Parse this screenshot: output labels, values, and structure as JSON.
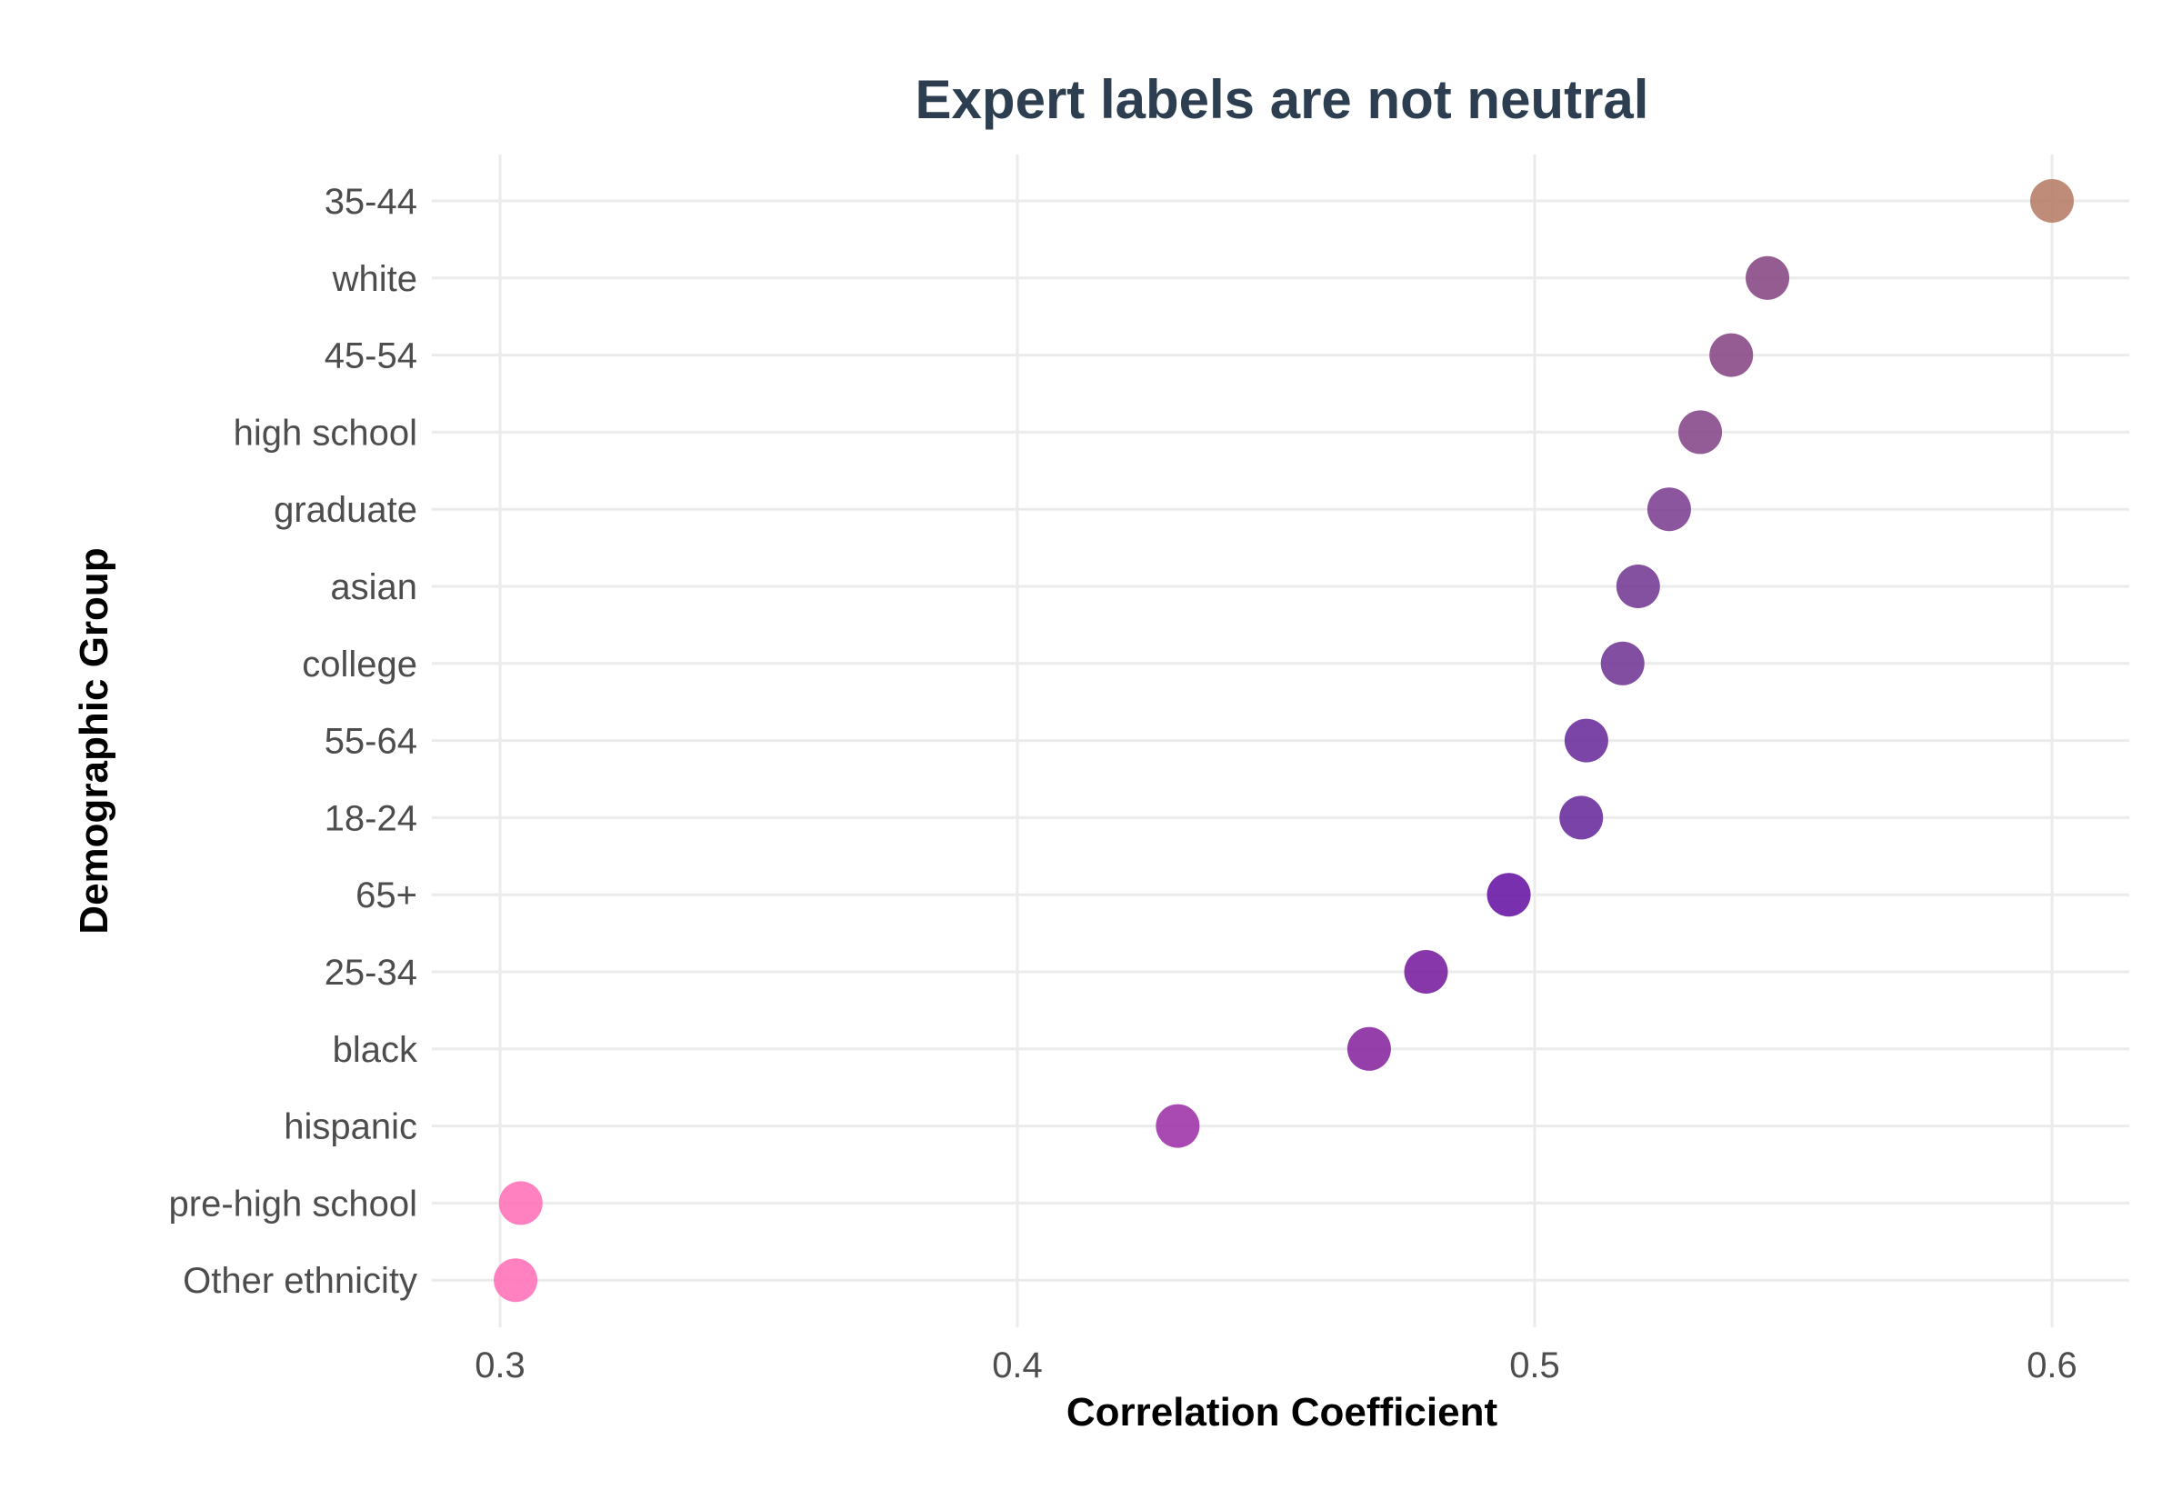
{
  "chart_data": {
    "type": "scatter",
    "title": "Expert labels are not neutral",
    "xlabel": "Correlation Coefficient",
    "ylabel": "Demographic Group",
    "xlim": [
      0.288,
      0.614
    ],
    "x_ticks": [
      0.3,
      0.4,
      0.5,
      0.6
    ],
    "x_tick_labels": [
      "0.3",
      "0.4",
      "0.5",
      "0.6"
    ],
    "grid": true,
    "legend": "none",
    "categories": [
      "35-44",
      "white",
      "45-54",
      "high school",
      "graduate",
      "asian",
      "college",
      "55-64",
      "18-24",
      "65+",
      "25-34",
      "black",
      "hispanic",
      "pre-high school",
      "Other ethnicity"
    ],
    "values": [
      0.6,
      0.545,
      0.538,
      0.532,
      0.526,
      0.52,
      0.517,
      0.51,
      0.509,
      0.495,
      0.479,
      0.468,
      0.431,
      0.304,
      0.303
    ],
    "colors": [
      "#b97f6b",
      "#8a4a86",
      "#8a4a88",
      "#874a8c",
      "#7f4493",
      "#763e96",
      "#733b98",
      "#6c319d",
      "#6b2f9d",
      "#6a1aa5",
      "#7a21a0",
      "#8a2aa2",
      "#9e36a8",
      "#ff73b8",
      "#ff73b9"
    ]
  }
}
